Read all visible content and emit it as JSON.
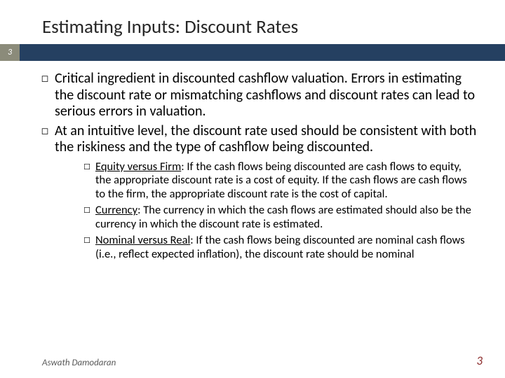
{
  "colors": {
    "stripe_bg": "#254061",
    "badge_bg": "#8b8b7a",
    "title_color": "#262626",
    "footer_color": "#595959",
    "pagenum_color": "#8b2b2b",
    "background": "#ffffff"
  },
  "title": "Estimating Inputs: Discount Rates",
  "badge_number": "3",
  "bullets": [
    "Critical ingredient in discounted cashflow valuation. Errors in estimating the discount rate or mismatching cashflows and discount rates can lead to serious errors in valuation.",
    "At an intuitive level, the discount rate used should be consistent with both the riskiness and the type of cashflow being discounted."
  ],
  "sub_bullets": [
    {
      "lead": "Equity versus Firm",
      "rest": ": If the cash flows being discounted are cash flows to equity, the appropriate discount rate is a cost of equity. If the cash flows are cash flows to the firm, the appropriate discount rate is the cost of capital."
    },
    {
      "lead": "Currency",
      "rest": ": The currency in which the cash flows are estimated should also be the currency in which the discount rate is estimated."
    },
    {
      "lead": "Nominal versus Real",
      "rest": ": If the cash flows being discounted are nominal cash flows (i.e., reflect expected inflation), the discount rate should be nominal"
    }
  ],
  "footer": "Aswath Damodaran",
  "page_number": "3",
  "bullet_glyphs": {
    "level1": "◻",
    "level2": "☐"
  },
  "typography": {
    "title_fontsize": 27,
    "l1_fontsize": 20,
    "l2_fontsize": 16.5,
    "footer_fontsize": 13,
    "pagenum_fontsize": 17
  }
}
